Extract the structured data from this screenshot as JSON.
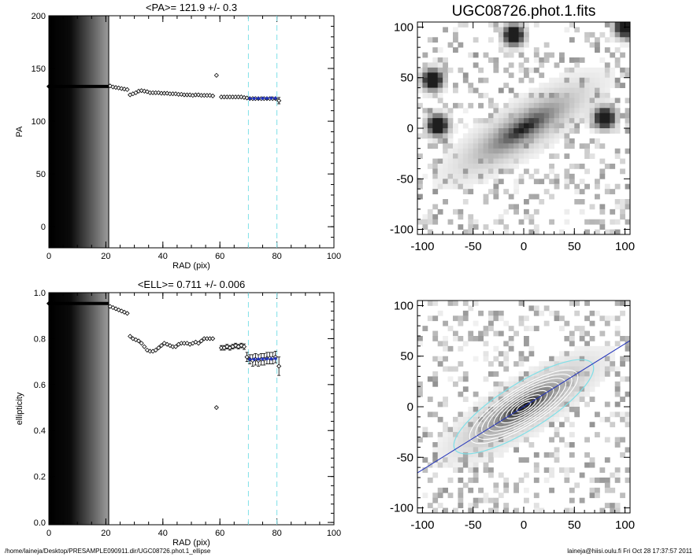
{
  "footer": {
    "path": "/home/laineja/Desktop/PRESAMPLE090911.dir/UGC08726.phot.1_ellipse",
    "stamp": "laineja@hiisi.oulu.fi  Fri Oct 28 17:37:57 2011"
  },
  "colors": {
    "fit_points": "#2233bb",
    "marker_lines": "#7fe0e8",
    "contours": "#ffffff",
    "outer_ellipse": "#7fe0e8",
    "major_axis": "#2233bb"
  },
  "chart_data": [
    {
      "id": "pa",
      "type": "scatter",
      "title": "<PA>= 121.9 +/-   0.3",
      "xlabel": "RAD (pix)",
      "ylabel": "PA",
      "xlim": [
        0,
        100
      ],
      "ylim": [
        -20,
        200
      ],
      "xticks": [
        0,
        20,
        40,
        60,
        80,
        100
      ],
      "yticks": [
        0,
        50,
        100,
        150,
        200
      ],
      "profile_shading_radius": 21,
      "marker_radii": [
        70,
        80
      ],
      "plateau": {
        "x_start": 0,
        "x_end": 21,
        "y": 133
      },
      "points": [
        {
          "x": 21.5,
          "y": 133.5,
          "e": 0.7
        },
        {
          "x": 22.5,
          "y": 132.5,
          "e": 0.7
        },
        {
          "x": 23.5,
          "y": 132,
          "e": 0.7
        },
        {
          "x": 24.5,
          "y": 131.5,
          "e": 0.7
        },
        {
          "x": 25.5,
          "y": 131,
          "e": 0.7
        },
        {
          "x": 26.5,
          "y": 130.5,
          "e": 0.7
        },
        {
          "x": 27.5,
          "y": 130,
          "e": 0.7
        },
        {
          "x": 28.5,
          "y": 125,
          "e": 0.7
        },
        {
          "x": 29.5,
          "y": 126,
          "e": 0.7
        },
        {
          "x": 30.5,
          "y": 127,
          "e": 0.7
        },
        {
          "x": 31.5,
          "y": 128.5,
          "e": 0.7
        },
        {
          "x": 32.5,
          "y": 129,
          "e": 0.7
        },
        {
          "x": 33.5,
          "y": 128.5,
          "e": 0.7
        },
        {
          "x": 34.5,
          "y": 128,
          "e": 0.7
        },
        {
          "x": 35.5,
          "y": 127,
          "e": 0.7
        },
        {
          "x": 36.5,
          "y": 127,
          "e": 0.7
        },
        {
          "x": 37.5,
          "y": 127,
          "e": 0.7
        },
        {
          "x": 38.5,
          "y": 127,
          "e": 0.7
        },
        {
          "x": 39.5,
          "y": 126.5,
          "e": 0.7
        },
        {
          "x": 40.5,
          "y": 126.5,
          "e": 0.7
        },
        {
          "x": 41.5,
          "y": 126.5,
          "e": 0.7
        },
        {
          "x": 42.5,
          "y": 126,
          "e": 0.7
        },
        {
          "x": 43.5,
          "y": 126,
          "e": 0.7
        },
        {
          "x": 44.5,
          "y": 126,
          "e": 0.7
        },
        {
          "x": 45.5,
          "y": 125.5,
          "e": 0.7
        },
        {
          "x": 46.5,
          "y": 125.5,
          "e": 0.7
        },
        {
          "x": 47.5,
          "y": 125,
          "e": 0.7
        },
        {
          "x": 48.5,
          "y": 125,
          "e": 0.7
        },
        {
          "x": 49.5,
          "y": 125,
          "e": 0.7
        },
        {
          "x": 50.5,
          "y": 124.5,
          "e": 0.7
        },
        {
          "x": 51.5,
          "y": 125,
          "e": 0.7
        },
        {
          "x": 52.5,
          "y": 125,
          "e": 0.7
        },
        {
          "x": 53.5,
          "y": 124.5,
          "e": 0.7
        },
        {
          "x": 54.5,
          "y": 124.5,
          "e": 0.7
        },
        {
          "x": 55.5,
          "y": 124.5,
          "e": 0.7
        },
        {
          "x": 56.5,
          "y": 124.5,
          "e": 0.7
        },
        {
          "x": 57.5,
          "y": 124,
          "e": 0.7
        },
        {
          "x": 58.8,
          "y": 143.5,
          "e": 0.7
        },
        {
          "x": 60.5,
          "y": 123,
          "e": 0.7
        },
        {
          "x": 61.5,
          "y": 123,
          "e": 0.7
        },
        {
          "x": 62.5,
          "y": 123,
          "e": 0.7
        },
        {
          "x": 63.5,
          "y": 123,
          "e": 0.7
        },
        {
          "x": 64.5,
          "y": 123,
          "e": 0.7
        },
        {
          "x": 65.5,
          "y": 123,
          "e": 0.7
        },
        {
          "x": 66.5,
          "y": 123,
          "e": 0.7
        },
        {
          "x": 67.5,
          "y": 123,
          "e": 0.7
        },
        {
          "x": 68.5,
          "y": 122.5,
          "e": 0.7
        },
        {
          "x": 69.5,
          "y": 122,
          "e": 1.2
        },
        {
          "x": 70.5,
          "y": 121.5,
          "e": 1.2
        },
        {
          "x": 71.5,
          "y": 121.5,
          "e": 1.2
        },
        {
          "x": 72.5,
          "y": 121.5,
          "e": 1.2
        },
        {
          "x": 73.5,
          "y": 121.5,
          "e": 1.2
        },
        {
          "x": 74.5,
          "y": 121.5,
          "e": 1.2
        },
        {
          "x": 75.5,
          "y": 121.5,
          "e": 1.2
        },
        {
          "x": 76.5,
          "y": 121.5,
          "e": 1.2
        },
        {
          "x": 77.5,
          "y": 121.5,
          "e": 1.2
        },
        {
          "x": 78.5,
          "y": 121.5,
          "e": 1.2
        },
        {
          "x": 79.5,
          "y": 121.5,
          "e": 1.2
        },
        {
          "x": 80.7,
          "y": 119.5,
          "e": 3
        }
      ],
      "fit_points": [
        {
          "x": 70.5,
          "y": 121.5
        },
        {
          "x": 72,
          "y": 121.5
        },
        {
          "x": 73.5,
          "y": 121.7
        },
        {
          "x": 75,
          "y": 121.7
        },
        {
          "x": 76.5,
          "y": 121.8
        },
        {
          "x": 78,
          "y": 121.9
        },
        {
          "x": 79.5,
          "y": 121.9
        }
      ]
    },
    {
      "id": "ell",
      "type": "scatter",
      "title": "<ELL>= 0.711 +/-  0.006",
      "xlabel": "RAD (pix)",
      "ylabel": "ellipticity",
      "xlim": [
        0,
        100
      ],
      "ylim": [
        -0.01,
        1.0
      ],
      "xticks": [
        0,
        20,
        40,
        60,
        80,
        100
      ],
      "yticks": [
        0.0,
        0.2,
        0.4,
        0.6,
        0.8,
        1.0
      ],
      "ytick_labels": [
        "0.0",
        "0.2",
        "0.4",
        "0.6",
        "0.8",
        "1.0"
      ],
      "profile_shading_radius": 21,
      "marker_radii": [
        70,
        80
      ],
      "plateau": {
        "x_start": 0,
        "x_end": 21,
        "y": 0.953
      },
      "points": [
        {
          "x": 21.5,
          "y": 0.94,
          "e": 0.004
        },
        {
          "x": 22.5,
          "y": 0.935,
          "e": 0.004
        },
        {
          "x": 23.5,
          "y": 0.93,
          "e": 0.004
        },
        {
          "x": 24.5,
          "y": 0.925,
          "e": 0.004
        },
        {
          "x": 25.5,
          "y": 0.92,
          "e": 0.004
        },
        {
          "x": 26.5,
          "y": 0.915,
          "e": 0.004
        },
        {
          "x": 27.5,
          "y": 0.91,
          "e": 0.004
        },
        {
          "x": 28.5,
          "y": 0.81,
          "e": 0.006
        },
        {
          "x": 29.5,
          "y": 0.8,
          "e": 0.006
        },
        {
          "x": 30.5,
          "y": 0.795,
          "e": 0.006
        },
        {
          "x": 31.5,
          "y": 0.79,
          "e": 0.006
        },
        {
          "x": 32.5,
          "y": 0.78,
          "e": 0.006
        },
        {
          "x": 33.5,
          "y": 0.765,
          "e": 0.006
        },
        {
          "x": 34.5,
          "y": 0.75,
          "e": 0.006
        },
        {
          "x": 35.5,
          "y": 0.745,
          "e": 0.006
        },
        {
          "x": 36.5,
          "y": 0.745,
          "e": 0.006
        },
        {
          "x": 37.5,
          "y": 0.75,
          "e": 0.006
        },
        {
          "x": 38.5,
          "y": 0.76,
          "e": 0.006
        },
        {
          "x": 39.5,
          "y": 0.77,
          "e": 0.006
        },
        {
          "x": 40.5,
          "y": 0.78,
          "e": 0.006
        },
        {
          "x": 41.5,
          "y": 0.775,
          "e": 0.006
        },
        {
          "x": 42.5,
          "y": 0.77,
          "e": 0.006
        },
        {
          "x": 43.5,
          "y": 0.765,
          "e": 0.006
        },
        {
          "x": 44.5,
          "y": 0.765,
          "e": 0.006
        },
        {
          "x": 45.5,
          "y": 0.775,
          "e": 0.006
        },
        {
          "x": 46.5,
          "y": 0.78,
          "e": 0.006
        },
        {
          "x": 47.5,
          "y": 0.78,
          "e": 0.006
        },
        {
          "x": 48.5,
          "y": 0.78,
          "e": 0.006
        },
        {
          "x": 49.5,
          "y": 0.775,
          "e": 0.006
        },
        {
          "x": 50.5,
          "y": 0.78,
          "e": 0.006
        },
        {
          "x": 51.5,
          "y": 0.785,
          "e": 0.006
        },
        {
          "x": 52.5,
          "y": 0.78,
          "e": 0.006
        },
        {
          "x": 53.5,
          "y": 0.79,
          "e": 0.006
        },
        {
          "x": 54.5,
          "y": 0.8,
          "e": 0.006
        },
        {
          "x": 55.5,
          "y": 0.8,
          "e": 0.006
        },
        {
          "x": 56.5,
          "y": 0.8,
          "e": 0.006
        },
        {
          "x": 57.5,
          "y": 0.8,
          "e": 0.006
        },
        {
          "x": 58.8,
          "y": 0.5,
          "e": 0.004
        },
        {
          "x": 60.5,
          "y": 0.76,
          "e": 0.01
        },
        {
          "x": 61.5,
          "y": 0.76,
          "e": 0.01
        },
        {
          "x": 62.5,
          "y": 0.765,
          "e": 0.01
        },
        {
          "x": 63.5,
          "y": 0.76,
          "e": 0.01
        },
        {
          "x": 64.5,
          "y": 0.765,
          "e": 0.01
        },
        {
          "x": 65.5,
          "y": 0.77,
          "e": 0.01
        },
        {
          "x": 66.5,
          "y": 0.765,
          "e": 0.01
        },
        {
          "x": 67.5,
          "y": 0.77,
          "e": 0.01
        },
        {
          "x": 68.5,
          "y": 0.765,
          "e": 0.012
        },
        {
          "x": 69.5,
          "y": 0.72,
          "e": 0.02
        },
        {
          "x": 70.5,
          "y": 0.71,
          "e": 0.02
        },
        {
          "x": 71.5,
          "y": 0.705,
          "e": 0.025
        },
        {
          "x": 72.5,
          "y": 0.71,
          "e": 0.025
        },
        {
          "x": 73.5,
          "y": 0.705,
          "e": 0.025
        },
        {
          "x": 74.5,
          "y": 0.71,
          "e": 0.025
        },
        {
          "x": 75.5,
          "y": 0.71,
          "e": 0.025
        },
        {
          "x": 76.5,
          "y": 0.715,
          "e": 0.025
        },
        {
          "x": 77.5,
          "y": 0.715,
          "e": 0.025
        },
        {
          "x": 78.5,
          "y": 0.715,
          "e": 0.025
        },
        {
          "x": 79.5,
          "y": 0.72,
          "e": 0.025
        },
        {
          "x": 80.7,
          "y": 0.68,
          "e": 0.04
        }
      ],
      "fit_points": [
        {
          "x": 70.5,
          "y": 0.71
        },
        {
          "x": 72,
          "y": 0.71
        },
        {
          "x": 73.5,
          "y": 0.711
        },
        {
          "x": 75,
          "y": 0.711
        },
        {
          "x": 76.5,
          "y": 0.712
        },
        {
          "x": 78,
          "y": 0.712
        },
        {
          "x": 79.5,
          "y": 0.713
        }
      ]
    },
    {
      "id": "image",
      "type": "heatmap",
      "title": "UGC08726.phot.1.fits",
      "xlim": [
        -105,
        105
      ],
      "ylim": [
        -105,
        105
      ],
      "xticks": [
        -100,
        -50,
        0,
        50,
        100
      ],
      "yticks": [
        -100,
        -50,
        0,
        50,
        100
      ],
      "galaxy": {
        "pa_deg": 31.9,
        "semi_major": 90,
        "ellipticity": 0.711
      },
      "point_sources": [
        {
          "x": -10,
          "y": 92
        },
        {
          "x": 100,
          "y": 100
        },
        {
          "x": -85,
          "y": 3
        },
        {
          "x": 80,
          "y": 10
        },
        {
          "x": -90,
          "y": 48
        }
      ]
    },
    {
      "id": "model",
      "type": "heatmap",
      "xlim": [
        -105,
        105
      ],
      "ylim": [
        -105,
        105
      ],
      "xticks": [
        -100,
        -50,
        0,
        50,
        100
      ],
      "yticks": [
        -100,
        -50,
        0,
        50,
        100
      ],
      "galaxy": {
        "pa_deg": 31.9,
        "semi_major": 90,
        "ellipticity": 0.711
      },
      "contour_radii": [
        8,
        14,
        20,
        27,
        34,
        41,
        48,
        55,
        62
      ],
      "outer_ellipse": {
        "a": 80,
        "ellipticity": 0.711,
        "pa_deg": 31.9
      },
      "major_axis_line": {
        "pa_deg": 31.9
      }
    }
  ]
}
